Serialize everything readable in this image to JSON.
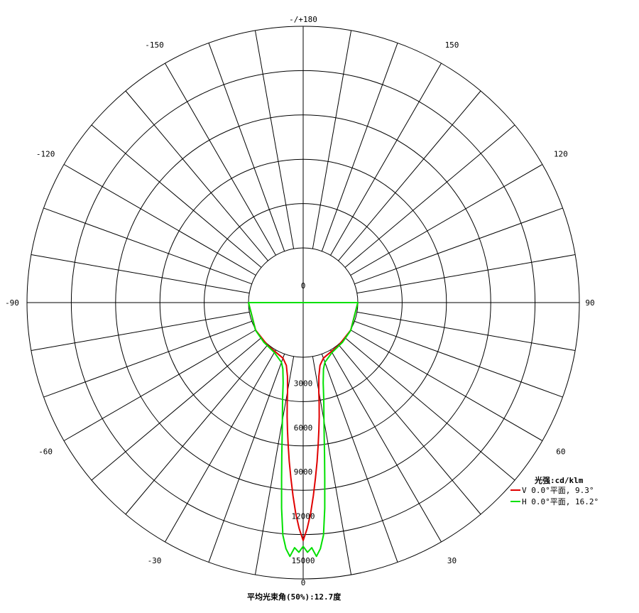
{
  "chart_data": {
    "type": "polar",
    "angle_labels": [
      {
        "text": "-/+180",
        "deg": 180
      },
      {
        "text": "150",
        "deg": 150
      },
      {
        "text": "120",
        "deg": 120
      },
      {
        "text": "90",
        "deg": 90
      },
      {
        "text": "60",
        "deg": 60
      },
      {
        "text": "30",
        "deg": 30
      },
      {
        "text": "0",
        "deg": 0
      },
      {
        "text": "-30",
        "deg": -30
      },
      {
        "text": "-60",
        "deg": -60
      },
      {
        "text": "-90",
        "deg": -90
      },
      {
        "text": "-120",
        "deg": -120
      },
      {
        "text": "-150",
        "deg": -150
      }
    ],
    "radial_ticks": [
      0,
      3000,
      6000,
      9000,
      12000,
      15000
    ],
    "rmax": 15000,
    "angle_step_deg": 10,
    "legend": {
      "title": "光强:cd/klm",
      "position": "right"
    },
    "series": [
      {
        "name": "V 0.0°平面, 9.3°",
        "color": "#e00000",
        "points": [
          [
            0,
            12400
          ],
          [
            1,
            11600
          ],
          [
            2,
            10600
          ],
          [
            3,
            9400
          ],
          [
            4,
            8200
          ],
          [
            5,
            7100
          ],
          [
            6,
            6000
          ],
          [
            7,
            5000
          ],
          [
            8,
            4100
          ],
          [
            9,
            3200
          ],
          [
            10,
            2400
          ],
          [
            12,
            1400
          ],
          [
            15,
            700
          ],
          [
            20,
            300
          ],
          [
            30,
            120
          ],
          [
            40,
            60
          ],
          [
            60,
            20
          ],
          [
            90,
            0
          ]
        ]
      },
      {
        "name": "H 0.0°平面, 16.2°",
        "color": "#00e000",
        "points": [
          [
            0,
            12800
          ],
          [
            1,
            13200
          ],
          [
            2,
            12900
          ],
          [
            3,
            13500
          ],
          [
            4,
            13000
          ],
          [
            5,
            12100
          ],
          [
            6,
            10300
          ],
          [
            7,
            8300
          ],
          [
            8,
            6700
          ],
          [
            9,
            5400
          ],
          [
            10,
            4400
          ],
          [
            12,
            3000
          ],
          [
            14,
            1900
          ],
          [
            17,
            1000
          ],
          [
            20,
            600
          ],
          [
            30,
            200
          ],
          [
            45,
            80
          ],
          [
            60,
            30
          ],
          [
            90,
            0
          ]
        ]
      }
    ]
  },
  "footer": {
    "text": "平均光束角(50%):12.7度"
  }
}
